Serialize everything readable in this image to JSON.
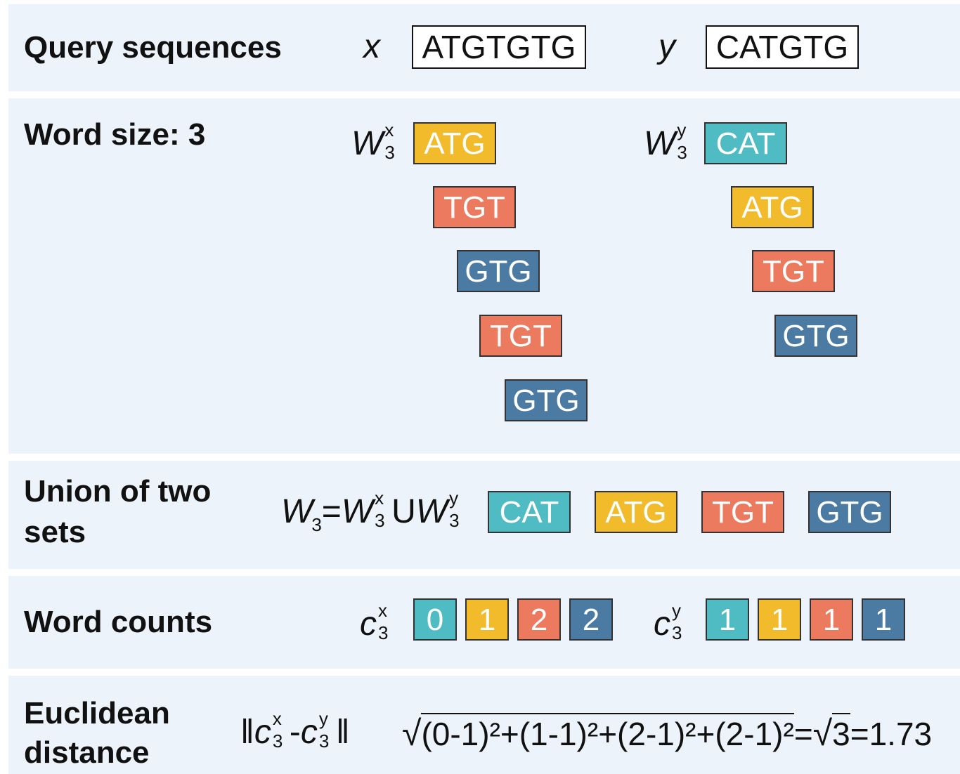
{
  "rows": {
    "query": {
      "label": "Query sequences",
      "x_var": "x",
      "x_seq": "ATGTGTG",
      "y_var": "y",
      "y_seq": "CATGTG"
    },
    "word_size": {
      "label": "Word size: 3",
      "wx_base": "W",
      "wx_sub": "3",
      "wx_sup": "x",
      "wy_base": "W",
      "wy_sub": "3",
      "wy_sup": "y",
      "x_words": [
        "ATG",
        "TGT",
        "GTG",
        "TGT",
        "GTG"
      ],
      "y_words": [
        "CAT",
        "ATG",
        "TGT",
        "GTG"
      ]
    },
    "union": {
      "label_line1": "Union of two",
      "label_line2": "sets",
      "lhs_base": "W",
      "lhs_sub": "3",
      "eq": "=",
      "a_base": "W",
      "a_sub": "3",
      "a_sup": "x",
      "op": "U",
      "b_base": "W",
      "b_sub": "3",
      "b_sup": "y",
      "words": [
        "CAT",
        "ATG",
        "TGT",
        "GTG"
      ]
    },
    "counts": {
      "label": "Word counts",
      "cx_base": "c",
      "cx_sup": "x",
      "cx_sub": "3",
      "cx_values": [
        "0",
        "1",
        "2",
        "2"
      ],
      "cy_base": "c",
      "cy_sup": "y",
      "cy_sub": "3",
      "cy_values": [
        "1",
        "1",
        "1",
        "1"
      ]
    },
    "distance": {
      "label_line1": "Euclidean",
      "label_line2": "distance",
      "norm_open": "‖",
      "a_base": "c",
      "a_sup": "x",
      "a_sub": "3",
      "minus": "-",
      "b_base": "c",
      "b_sup": "y",
      "b_sub": "3",
      "norm_close": "‖",
      "radicand": "(0-1)²+(1-1)²+(2-1)²+(2-1)²",
      "eq1": "=",
      "sqrt_value": "3",
      "result": "=1.73"
    }
  },
  "colors": {
    "CAT": "#4fbcc3",
    "ATG": "#f1bb2c",
    "TGT": "#ec7a5e",
    "GTG": "#4b7aa3",
    "panel_bg": "#edf3fa"
  }
}
